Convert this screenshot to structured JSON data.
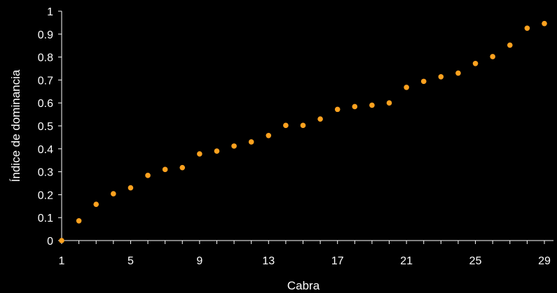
{
  "chart_data": {
    "type": "scatter",
    "title": "",
    "xlabel": "Cabra",
    "ylabel": "Índice de dominancia",
    "xlim": [
      1,
      29
    ],
    "ylim": [
      0,
      1
    ],
    "x_ticks": [
      1,
      5,
      9,
      13,
      17,
      21,
      25,
      29
    ],
    "y_ticks": [
      "0",
      "0.1",
      "0.2",
      "0.3",
      "0.4",
      "0.5",
      "0.6",
      "0.7",
      "0.8",
      "0.9",
      "1"
    ],
    "grid": false,
    "legend": "none",
    "colors": {
      "background": "#000000",
      "axis": "#ffffff",
      "text": "#ffffff",
      "marker": "#ffa21f"
    },
    "series": [
      {
        "x": [
          1,
          2,
          3,
          4,
          5,
          6,
          7,
          8,
          9,
          10,
          11,
          12,
          13,
          14,
          15,
          16,
          17,
          18,
          19,
          20,
          21,
          22,
          23,
          24,
          25,
          26,
          27,
          28,
          29
        ],
        "values": [
          0.0,
          0.086,
          0.158,
          0.204,
          0.23,
          0.284,
          0.31,
          0.318,
          0.378,
          0.39,
          0.412,
          0.43,
          0.458,
          0.502,
          0.502,
          0.53,
          0.572,
          0.584,
          0.59,
          0.6,
          0.668,
          0.694,
          0.714,
          0.73,
          0.772,
          0.802,
          0.852,
          0.926,
          0.946
        ]
      }
    ]
  }
}
